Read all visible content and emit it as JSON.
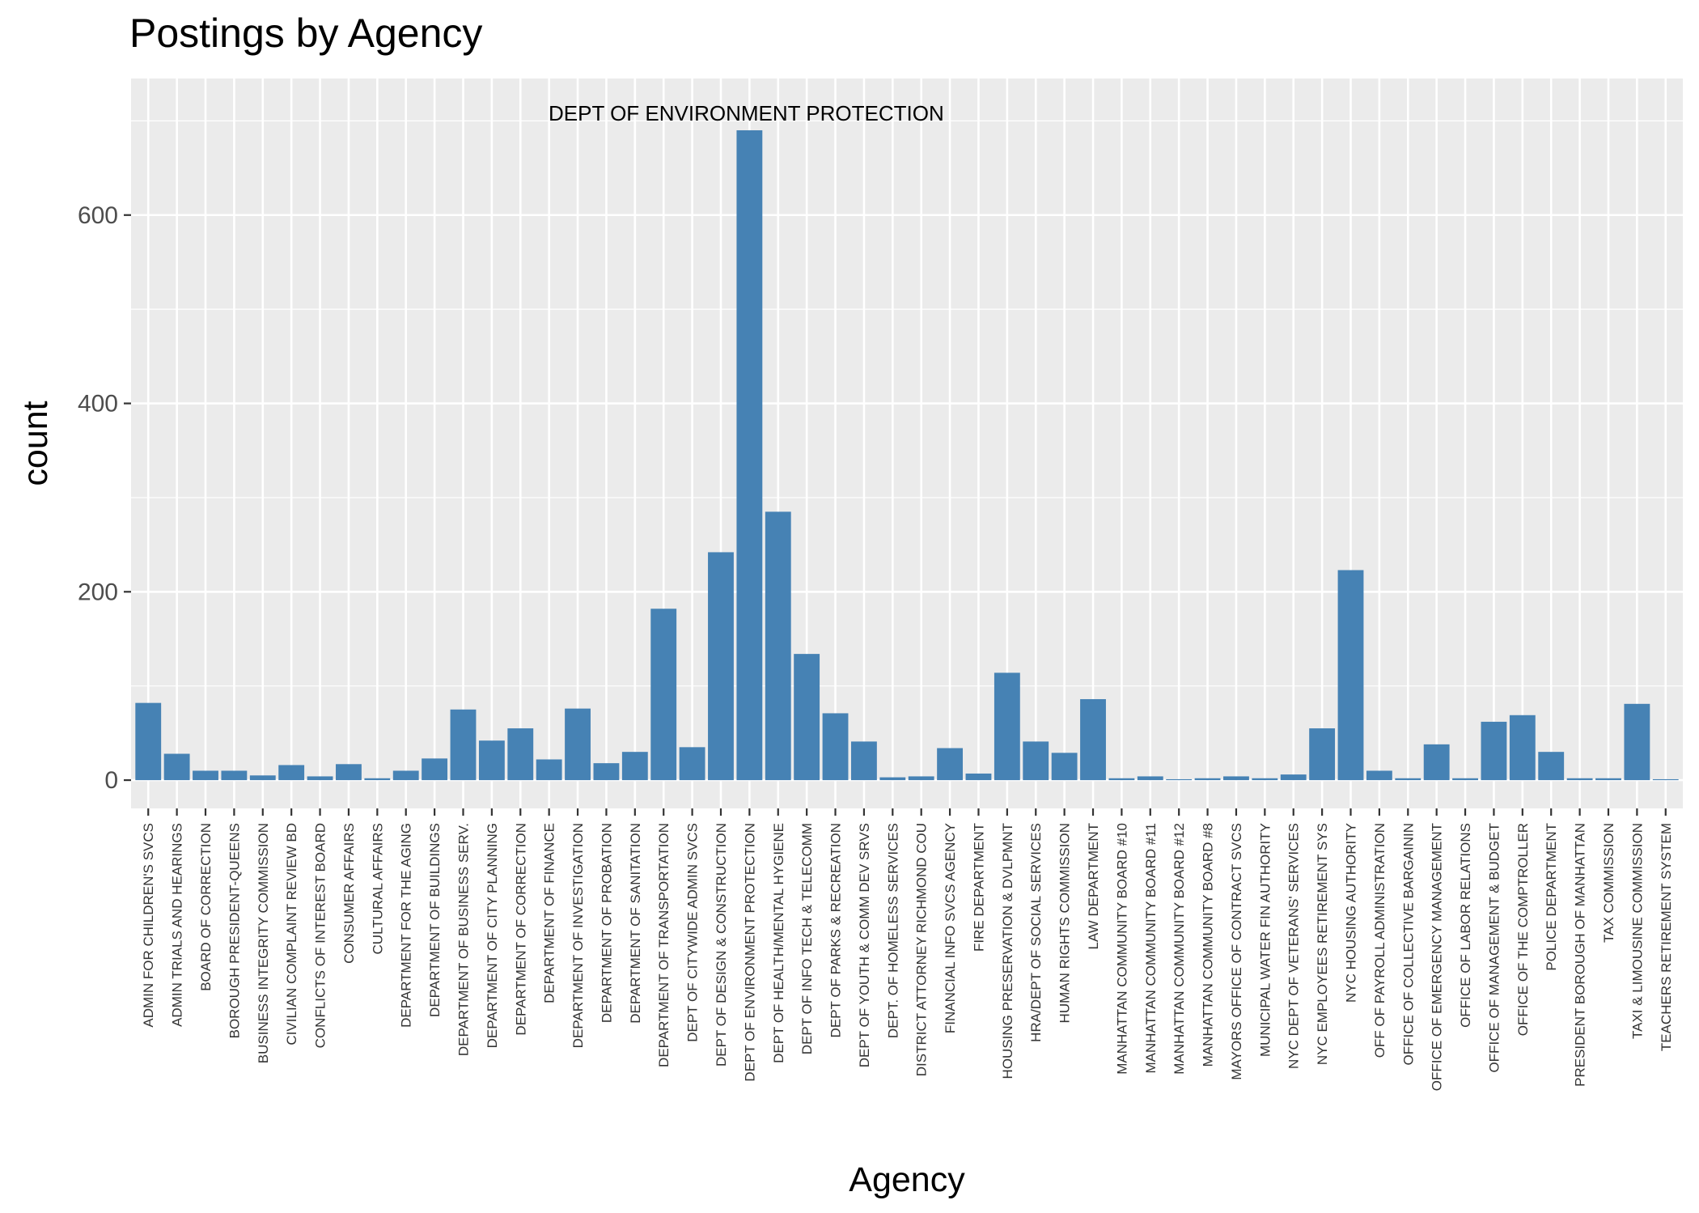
{
  "chart_data": {
    "type": "bar",
    "title": "Postings by Agency",
    "xlabel": "Agency",
    "ylabel": "count",
    "ylim": [
      -30,
      745
    ],
    "yticks": [
      0,
      200,
      400,
      600
    ],
    "grid": true,
    "bar_color": "#4682B4",
    "panel_color": "#EBEBEB",
    "annotation": {
      "text": "DEPT OF ENVIRONMENT PROTECTION",
      "category": "DEPT OF ENVIRONMENT PROTECTION"
    },
    "categories": [
      "ADMIN FOR CHILDREN'S SVCS",
      "ADMIN TRIALS AND HEARINGS",
      "BOARD OF CORRECTION",
      "BOROUGH PRESIDENT-QUEENS",
      "BUSINESS INTEGRITY COMMISSION",
      "CIVILIAN COMPLAINT REVIEW BD",
      "CONFLICTS OF INTEREST BOARD",
      "CONSUMER AFFAIRS",
      "CULTURAL AFFAIRS",
      "DEPARTMENT FOR THE AGING",
      "DEPARTMENT OF BUILDINGS",
      "DEPARTMENT OF BUSINESS SERV.",
      "DEPARTMENT OF CITY PLANNING",
      "DEPARTMENT OF CORRECTION",
      "DEPARTMENT OF FINANCE",
      "DEPARTMENT OF INVESTIGATION",
      "DEPARTMENT OF PROBATION",
      "DEPARTMENT OF SANITATION",
      "DEPARTMENT OF TRANSPORTATION",
      "DEPT OF CITYWIDE ADMIN SVCS",
      "DEPT OF DESIGN & CONSTRUCTION",
      "DEPT OF ENVIRONMENT PROTECTION",
      "DEPT OF HEALTH/MENTAL HYGIENE",
      "DEPT OF INFO TECH & TELECOMM",
      "DEPT OF PARKS & RECREATION",
      "DEPT OF YOUTH & COMM DEV SRVS",
      "DEPT. OF HOMELESS SERVICES",
      "DISTRICT ATTORNEY RICHMOND COU",
      "FINANCIAL INFO SVCS AGENCY",
      "FIRE DEPARTMENT",
      "HOUSING PRESERVATION & DVLPMNT",
      "HRA/DEPT OF SOCIAL SERVICES",
      "HUMAN RIGHTS COMMISSION",
      "LAW DEPARTMENT",
      "MANHATTAN COMMUNITY BOARD #10",
      "MANHATTAN COMMUNITY BOARD #11",
      "MANHATTAN COMMUNITY BOARD #12",
      "MANHATTAN COMMUNITY BOARD #8",
      "MAYORS OFFICE OF CONTRACT SVCS",
      "MUNICIPAL WATER FIN AUTHORITY",
      "NYC DEPT OF VETERANS' SERVICES",
      "NYC EMPLOYEES RETIREMENT SYS",
      "NYC HOUSING AUTHORITY",
      "OFF OF PAYROLL ADMINISTRATION",
      "OFFICE OF COLLECTIVE BARGAININ",
      "OFFICE OF EMERGENCY MANAGEMENT",
      "OFFICE OF LABOR RELATIONS",
      "OFFICE OF MANAGEMENT & BUDGET",
      "OFFICE OF THE COMPTROLLER",
      "POLICE DEPARTMENT",
      "PRESIDENT BOROUGH OF MANHATTAN",
      "TAX COMMISSION",
      "TAXI & LIMOUSINE COMMISSION",
      "TEACHERS RETIREMENT SYSTEM"
    ],
    "values": [
      82,
      28,
      10,
      10,
      5,
      16,
      4,
      17,
      2,
      10,
      23,
      75,
      42,
      55,
      22,
      76,
      18,
      30,
      182,
      35,
      242,
      690,
      285,
      134,
      71,
      41,
      3,
      4,
      34,
      7,
      114,
      41,
      29,
      86,
      2,
      4,
      1,
      2,
      4,
      2,
      6,
      55,
      223,
      10,
      2,
      38,
      2,
      62,
      69,
      30,
      2,
      2,
      81,
      1
    ]
  }
}
